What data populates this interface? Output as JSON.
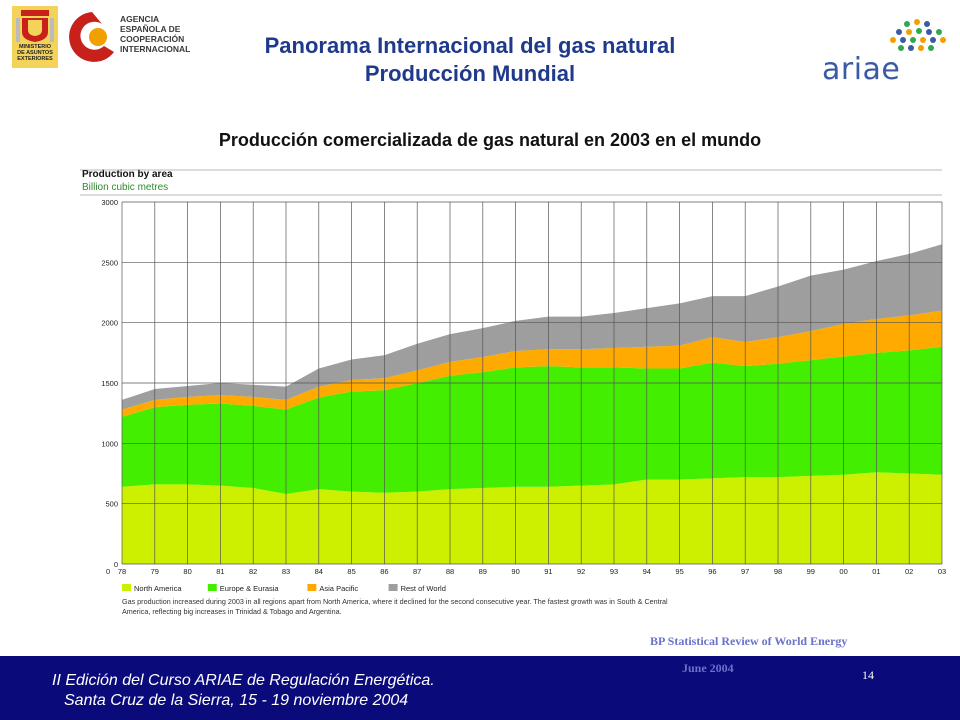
{
  "header": {
    "spain_logo_caption": [
      "MINISTERIO",
      "DE ASUNTOS",
      "EXTERIORES"
    ],
    "aecid_text": [
      "AGENCIA",
      "ESPAÑOLA DE",
      "COOPERACIÓN",
      "INTERNACIONAL"
    ],
    "title_line1": "Panorama Internacional del gas natural",
    "title_line2": "Producción Mundial",
    "ariae_word": "ariae"
  },
  "subtitle": "Producción comercializada de gas natural en 2003 en el mundo",
  "chart_data": {
    "type": "area",
    "title": "Production by area",
    "subtitle": "Billion cubic metres",
    "x": [
      "78",
      "79",
      "80",
      "81",
      "82",
      "83",
      "84",
      "85",
      "86",
      "87",
      "88",
      "89",
      "90",
      "91",
      "92",
      "93",
      "94",
      "95",
      "96",
      "97",
      "98",
      "99",
      "00",
      "01",
      "02",
      "03"
    ],
    "ylim": [
      0,
      3000
    ],
    "yticks": [
      0,
      500,
      1000,
      1500,
      2000,
      2500,
      3000
    ],
    "stacked": true,
    "series": [
      {
        "name": "North America",
        "color": "#ccf000",
        "values": [
          640,
          660,
          660,
          650,
          630,
          580,
          620,
          600,
          590,
          600,
          620,
          630,
          640,
          640,
          650,
          660,
          700,
          700,
          710,
          720,
          720,
          730,
          740,
          760,
          750,
          740
        ]
      },
      {
        "name": "Europe & Eurasia",
        "color": "#44ee00",
        "values": [
          580,
          640,
          660,
          680,
          680,
          700,
          760,
          830,
          850,
          900,
          940,
          960,
          990,
          1000,
          980,
          970,
          920,
          920,
          960,
          920,
          940,
          960,
          980,
          990,
          1020,
          1060
        ]
      },
      {
        "name": "Asia Pacific",
        "color": "#ffaa00",
        "values": [
          60,
          60,
          65,
          70,
          75,
          80,
          90,
          95,
          100,
          105,
          115,
          125,
          135,
          140,
          150,
          160,
          180,
          190,
          210,
          200,
          220,
          240,
          270,
          280,
          290,
          300
        ]
      },
      {
        "name": "Rest of World",
        "color": "#9e9e9e",
        "values": [
          80,
          90,
          90,
          100,
          100,
          110,
          150,
          170,
          190,
          220,
          230,
          240,
          250,
          270,
          270,
          290,
          320,
          350,
          340,
          380,
          420,
          460,
          450,
          480,
          510,
          550
        ]
      }
    ],
    "grid": true,
    "legend": "bottom",
    "note": "Gas production increased during 2003 in all regions apart from North America, where it declined for the second consecutive year. The fastest growth was in South & Central America, reflecting big increases in Trinidad & Tobago and Argentina."
  },
  "source": {
    "line1": "BP Statistical Review of World Energy",
    "line2": "June 2004"
  },
  "footer": {
    "line1": "II Edición del Curso ARIAE de Regulación Energética.",
    "line2": "Santa Cruz de la Sierra, 15 - 19 noviembre 2004",
    "page_number": "14"
  }
}
